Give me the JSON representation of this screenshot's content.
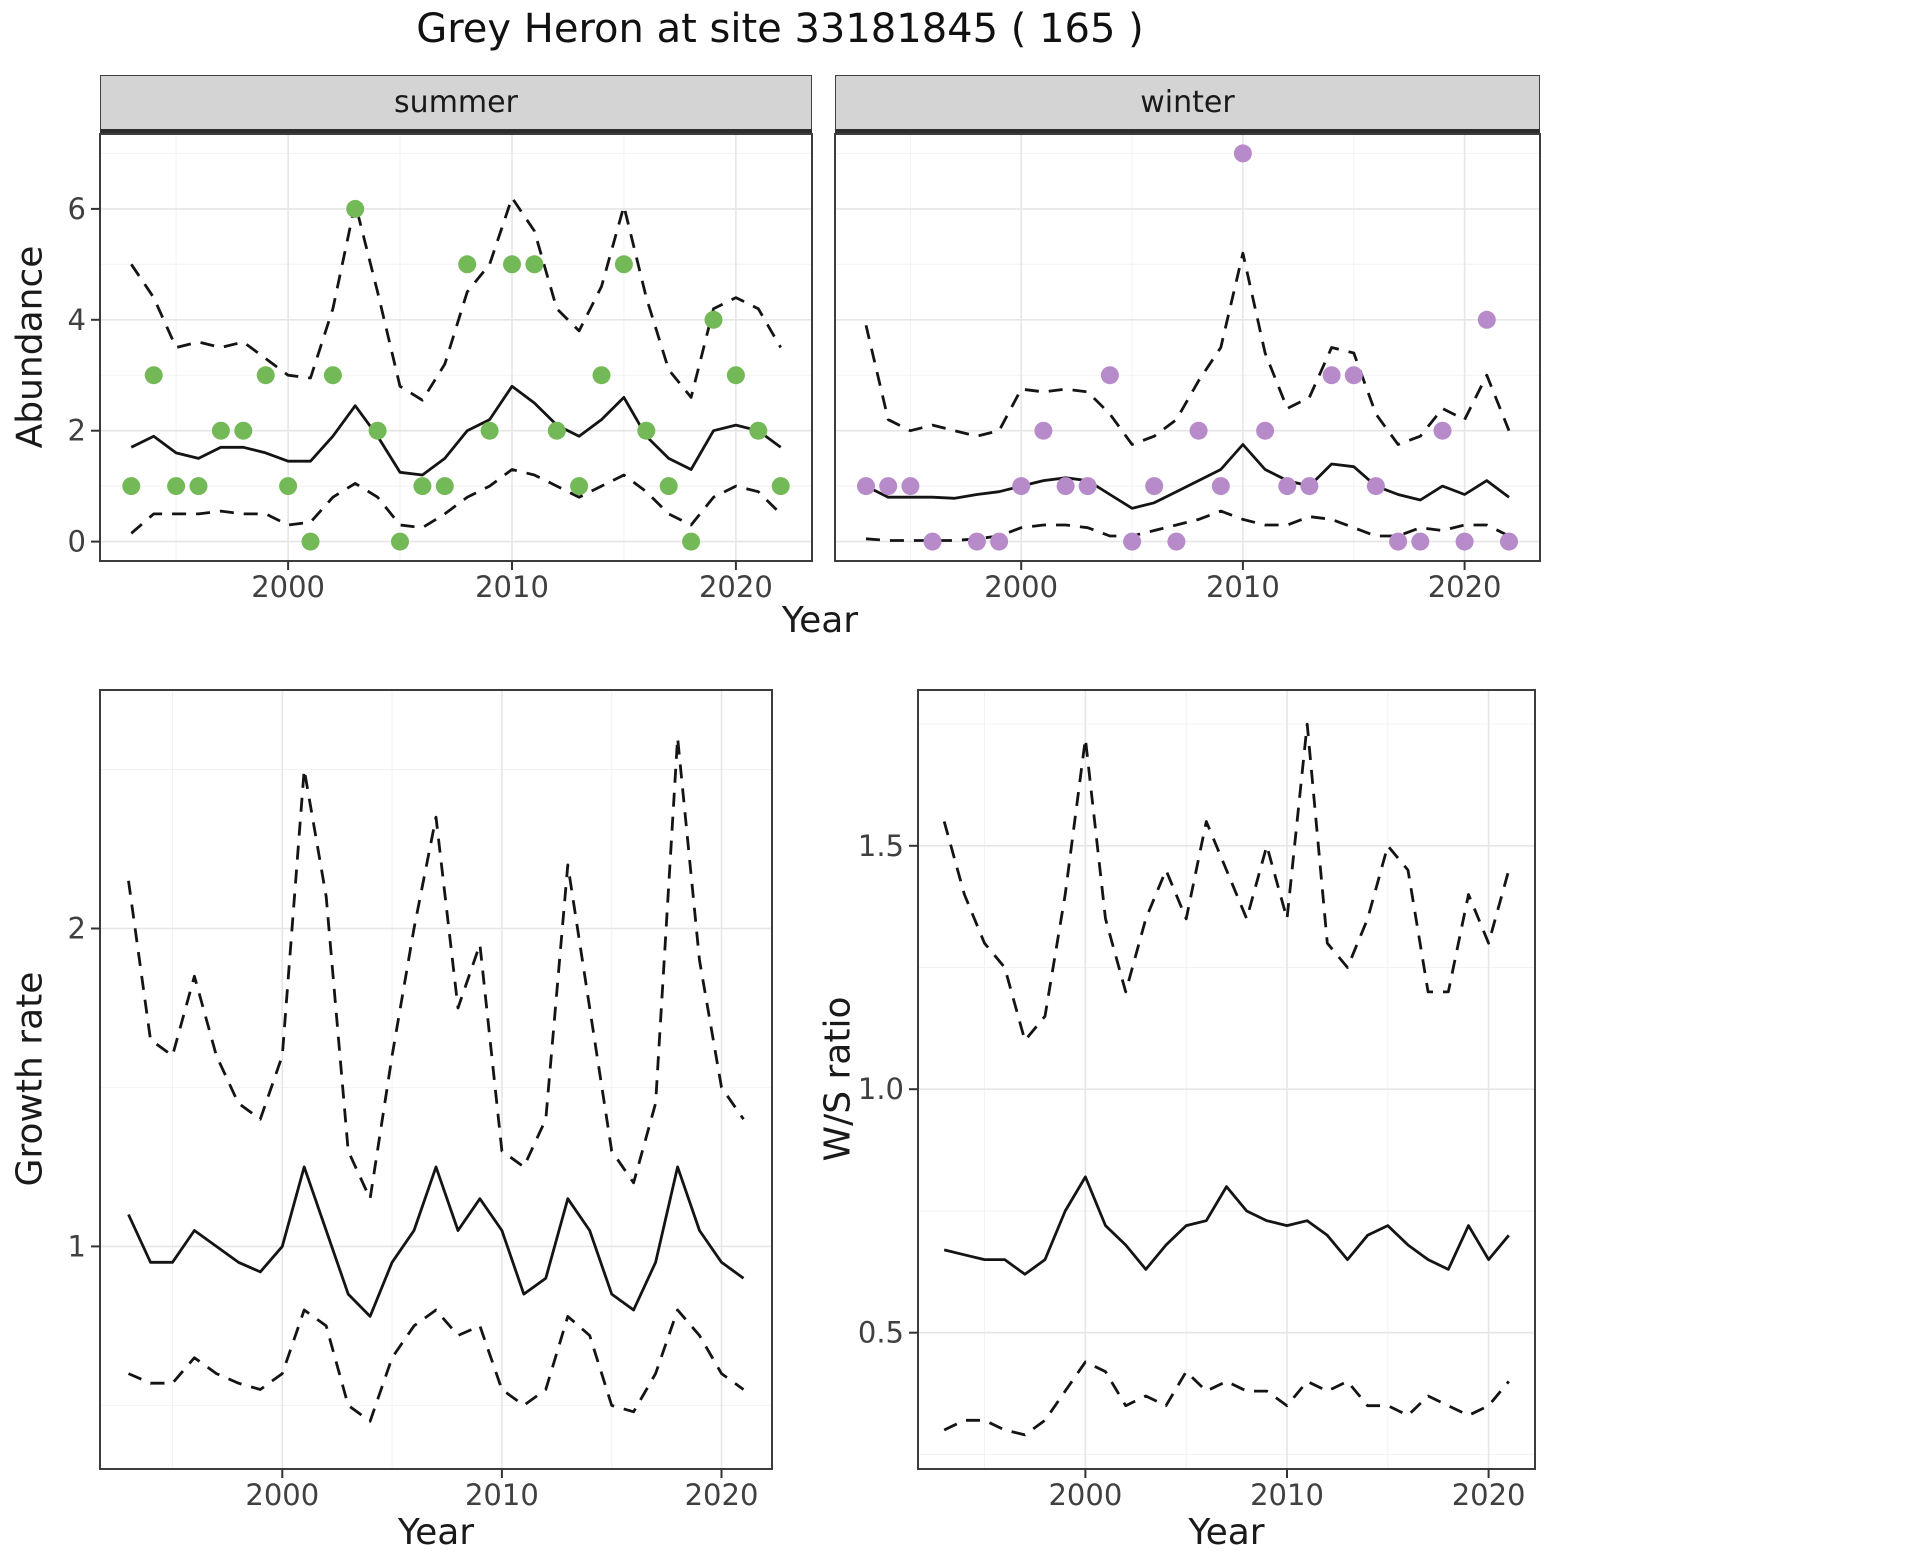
{
  "title": "Grey Heron at site 33181845 ( 165 )",
  "labels": {
    "year": "Year",
    "abundance": "Abundance"
  },
  "colors": {
    "summer_point": "#74b957",
    "winter_point": "#b78bc9",
    "line": "#141414",
    "grid_major": "#e6e6e6",
    "grid_minor": "#f2f2f2",
    "panel_border": "#3c3c3c",
    "tick": "#333333",
    "strip_bg": "#d4d4d4"
  },
  "chart_data": [
    {
      "id": "summer",
      "type": "line",
      "strip": "summer",
      "xlabel": "Year",
      "ylabel": "Abundance",
      "x": [
        1993,
        1994,
        1995,
        1996,
        1997,
        1998,
        1999,
        2000,
        2001,
        2002,
        2003,
        2004,
        2005,
        2006,
        2007,
        2008,
        2009,
        2010,
        2011,
        2012,
        2013,
        2014,
        2015,
        2016,
        2017,
        2018,
        2019,
        2020,
        2021,
        2022
      ],
      "points": [
        1,
        3,
        1,
        1,
        2,
        2,
        3,
        1,
        0,
        3,
        6,
        2,
        0,
        1,
        1,
        5,
        2,
        5,
        5,
        2,
        1,
        3,
        5,
        2,
        1,
        0,
        4,
        3,
        2,
        1
      ],
      "mean": [
        1.7,
        1.9,
        1.6,
        1.5,
        1.7,
        1.7,
        1.6,
        1.45,
        1.45,
        1.9,
        2.45,
        1.9,
        1.25,
        1.2,
        1.5,
        2.0,
        2.2,
        2.8,
        2.5,
        2.1,
        1.9,
        2.2,
        2.6,
        1.9,
        1.5,
        1.3,
        2.0,
        2.1,
        2.0,
        1.7
      ],
      "upper_ci": [
        5.0,
        4.4,
        3.5,
        3.6,
        3.5,
        3.6,
        3.3,
        3.0,
        2.95,
        4.2,
        6.1,
        4.5,
        2.8,
        2.55,
        3.2,
        4.5,
        5.0,
        6.2,
        5.6,
        4.2,
        3.8,
        4.6,
        6.05,
        4.4,
        3.1,
        2.6,
        4.2,
        4.4,
        4.2,
        3.5
      ],
      "lower_ci": [
        0.15,
        0.5,
        0.5,
        0.5,
        0.55,
        0.5,
        0.5,
        0.3,
        0.35,
        0.8,
        1.05,
        0.8,
        0.3,
        0.25,
        0.5,
        0.8,
        1.0,
        1.3,
        1.2,
        1.0,
        0.8,
        1.0,
        1.2,
        0.9,
        0.5,
        0.3,
        0.8,
        1.0,
        0.9,
        0.5
      ],
      "xlim": [
        1991.6,
        2023.4
      ],
      "ylim": [
        -0.35,
        7.35
      ],
      "xticks": [
        2000,
        2010,
        2020
      ],
      "xtick_labels": [
        "2000",
        "2010",
        "2020"
      ],
      "yticks": [
        0,
        2,
        4,
        6
      ],
      "ytick_labels": [
        "0",
        "2",
        "4",
        "6"
      ],
      "point_color": "#74b957"
    },
    {
      "id": "winter",
      "type": "line",
      "strip": "winter",
      "xlabel": "Year",
      "ylabel": "Abundance",
      "x": [
        1993,
        1994,
        1995,
        1996,
        1997,
        1998,
        1999,
        2000,
        2001,
        2002,
        2003,
        2004,
        2005,
        2006,
        2007,
        2008,
        2009,
        2010,
        2011,
        2012,
        2013,
        2014,
        2015,
        2016,
        2017,
        2018,
        2019,
        2020,
        2021,
        2022
      ],
      "points": [
        1,
        1,
        1,
        0,
        null,
        0,
        0,
        1,
        2,
        1,
        1,
        3,
        0,
        1,
        0,
        2,
        1,
        7,
        2,
        1,
        1,
        3,
        3,
        1,
        0,
        0,
        2,
        0,
        4,
        0
      ],
      "mean": [
        1.0,
        0.8,
        0.8,
        0.8,
        0.78,
        0.85,
        0.9,
        1.0,
        1.1,
        1.15,
        1.1,
        0.85,
        0.6,
        0.7,
        0.9,
        1.1,
        1.3,
        1.75,
        1.3,
        1.1,
        1.0,
        1.4,
        1.35,
        1.0,
        0.85,
        0.75,
        1.0,
        0.85,
        1.1,
        0.8
      ],
      "upper_ci": [
        3.9,
        2.2,
        2.0,
        2.1,
        2.0,
        1.9,
        2.0,
        2.75,
        2.7,
        2.75,
        2.7,
        2.3,
        1.75,
        1.9,
        2.2,
        2.9,
        3.5,
        5.2,
        3.4,
        2.4,
        2.6,
        3.5,
        3.4,
        2.3,
        1.75,
        1.9,
        2.4,
        2.2,
        3.0,
        2.0
      ],
      "lower_ci": [
        0.05,
        0.02,
        0.02,
        0.02,
        0.02,
        0.05,
        0.1,
        0.25,
        0.3,
        0.3,
        0.25,
        0.1,
        0.1,
        0.2,
        0.3,
        0.4,
        0.55,
        0.4,
        0.3,
        0.3,
        0.45,
        0.4,
        0.25,
        0.1,
        0.1,
        0.25,
        0.2,
        0.3,
        0.3,
        0.1
      ],
      "xlim": [
        1991.6,
        2023.4
      ],
      "ylim": [
        -0.35,
        7.35
      ],
      "xticks": [
        2000,
        2010,
        2020
      ],
      "xtick_labels": [
        "2000",
        "2010",
        "2020"
      ],
      "yticks": [
        0,
        2,
        4,
        6
      ],
      "ytick_labels": [
        "0",
        "2",
        "4",
        "6"
      ],
      "point_color": "#b78bc9"
    },
    {
      "id": "growth",
      "type": "line",
      "strip": null,
      "xlabel": "Year",
      "ylabel": "Growth rate",
      "x": [
        1993,
        1994,
        1995,
        1996,
        1997,
        1998,
        1999,
        2000,
        2001,
        2002,
        2003,
        2004,
        2005,
        2006,
        2007,
        2008,
        2009,
        2010,
        2011,
        2012,
        2013,
        2014,
        2015,
        2016,
        2017,
        2018,
        2019,
        2020,
        2021
      ],
      "mean": [
        1.1,
        0.95,
        0.95,
        1.05,
        1.0,
        0.95,
        0.92,
        1.0,
        1.25,
        1.05,
        0.85,
        0.78,
        0.95,
        1.05,
        1.25,
        1.05,
        1.15,
        1.05,
        0.85,
        0.9,
        1.15,
        1.05,
        0.85,
        0.8,
        0.95,
        1.25,
        1.05,
        0.95,
        0.9
      ],
      "upper_ci": [
        2.15,
        1.65,
        1.6,
        1.85,
        1.6,
        1.45,
        1.4,
        1.6,
        2.5,
        2.1,
        1.3,
        1.15,
        1.6,
        2.0,
        2.35,
        1.75,
        1.95,
        1.3,
        1.25,
        1.4,
        2.2,
        1.75,
        1.3,
        1.2,
        1.45,
        2.6,
        1.9,
        1.5,
        1.4
      ],
      "lower_ci": [
        0.6,
        0.57,
        0.57,
        0.65,
        0.6,
        0.57,
        0.55,
        0.6,
        0.8,
        0.75,
        0.5,
        0.45,
        0.65,
        0.75,
        0.8,
        0.72,
        0.75,
        0.55,
        0.5,
        0.55,
        0.78,
        0.72,
        0.5,
        0.48,
        0.6,
        0.8,
        0.72,
        0.6,
        0.55
      ],
      "xlim": [
        1991.7,
        2022.3
      ],
      "ylim": [
        0.3,
        2.75
      ],
      "xticks": [
        2000,
        2010,
        2020
      ],
      "xtick_labels": [
        "2000",
        "2010",
        "2020"
      ],
      "yticks": [
        1,
        2
      ],
      "ytick_labels": [
        "1",
        "2"
      ],
      "point_color": null
    },
    {
      "id": "ws",
      "type": "line",
      "strip": null,
      "xlabel": "Year",
      "ylabel": "W/S ratio",
      "x": [
        1993,
        1994,
        1995,
        1996,
        1997,
        1998,
        1999,
        2000,
        2001,
        2002,
        2003,
        2004,
        2005,
        2006,
        2007,
        2008,
        2009,
        2010,
        2011,
        2012,
        2013,
        2014,
        2015,
        2016,
        2017,
        2018,
        2019,
        2020,
        2021
      ],
      "mean": [
        0.67,
        0.66,
        0.65,
        0.65,
        0.62,
        0.65,
        0.75,
        0.82,
        0.72,
        0.68,
        0.63,
        0.68,
        0.72,
        0.73,
        0.8,
        0.75,
        0.73,
        0.72,
        0.73,
        0.7,
        0.65,
        0.7,
        0.72,
        0.68,
        0.65,
        0.63,
        0.72,
        0.65,
        0.7
      ],
      "upper_ci": [
        1.55,
        1.4,
        1.3,
        1.25,
        1.1,
        1.15,
        1.4,
        1.72,
        1.35,
        1.2,
        1.35,
        1.45,
        1.35,
        1.55,
        1.45,
        1.35,
        1.5,
        1.35,
        1.75,
        1.3,
        1.25,
        1.35,
        1.5,
        1.45,
        1.2,
        1.2,
        1.4,
        1.3,
        1.45
      ],
      "lower_ci": [
        0.3,
        0.32,
        0.32,
        0.3,
        0.29,
        0.32,
        0.38,
        0.44,
        0.42,
        0.35,
        0.37,
        0.35,
        0.42,
        0.38,
        0.4,
        0.38,
        0.38,
        0.35,
        0.4,
        0.38,
        0.4,
        0.35,
        0.35,
        0.33,
        0.37,
        0.35,
        0.33,
        0.35,
        0.4
      ],
      "xlim": [
        1991.7,
        2022.3
      ],
      "ylim": [
        0.22,
        1.82
      ],
      "xticks": [
        2000,
        2010,
        2020
      ],
      "xtick_labels": [
        "2000",
        "2010",
        "2020"
      ],
      "yticks": [
        0.5,
        1.0,
        1.5
      ],
      "ytick_labels": [
        "0.5",
        "1.0",
        "1.5"
      ],
      "point_color": null
    }
  ]
}
